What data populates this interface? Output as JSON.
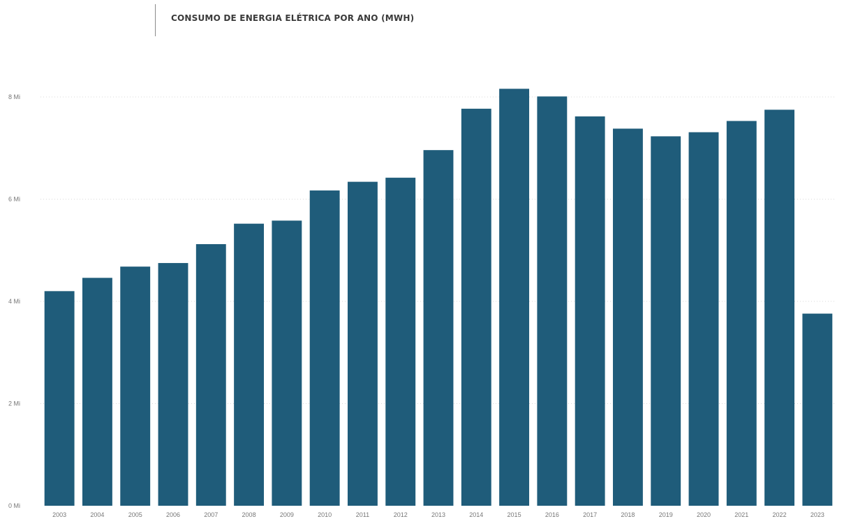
{
  "chart_data": {
    "type": "bar",
    "title": "CONSUMO DE ENERGIA ELÉTRICA POR ANO (MWH)",
    "xlabel": "",
    "ylabel": "",
    "categories": [
      "2003",
      "2004",
      "2005",
      "2006",
      "2007",
      "2008",
      "2009",
      "2010",
      "2011",
      "2012",
      "2013",
      "2014",
      "2015",
      "2016",
      "2017",
      "2018",
      "2019",
      "2020",
      "2021",
      "2022",
      "2023"
    ],
    "values": [
      4200000,
      4460000,
      4680000,
      4750000,
      5120000,
      5520000,
      5580000,
      6170000,
      6340000,
      6420000,
      6960000,
      7770000,
      8160000,
      8010000,
      7620000,
      7380000,
      7230000,
      7310000,
      7530000,
      7750000,
      3760000
    ],
    "ylim": [
      0,
      8000000
    ],
    "yticks": [
      0,
      2000000,
      4000000,
      6000000,
      8000000
    ],
    "ytick_labels": [
      "0 Mi",
      "2 Mi",
      "4 Mi",
      "6 Mi",
      "8 Mi"
    ],
    "bar_color": "#1f5c7a",
    "grid": true,
    "legend": "none"
  }
}
